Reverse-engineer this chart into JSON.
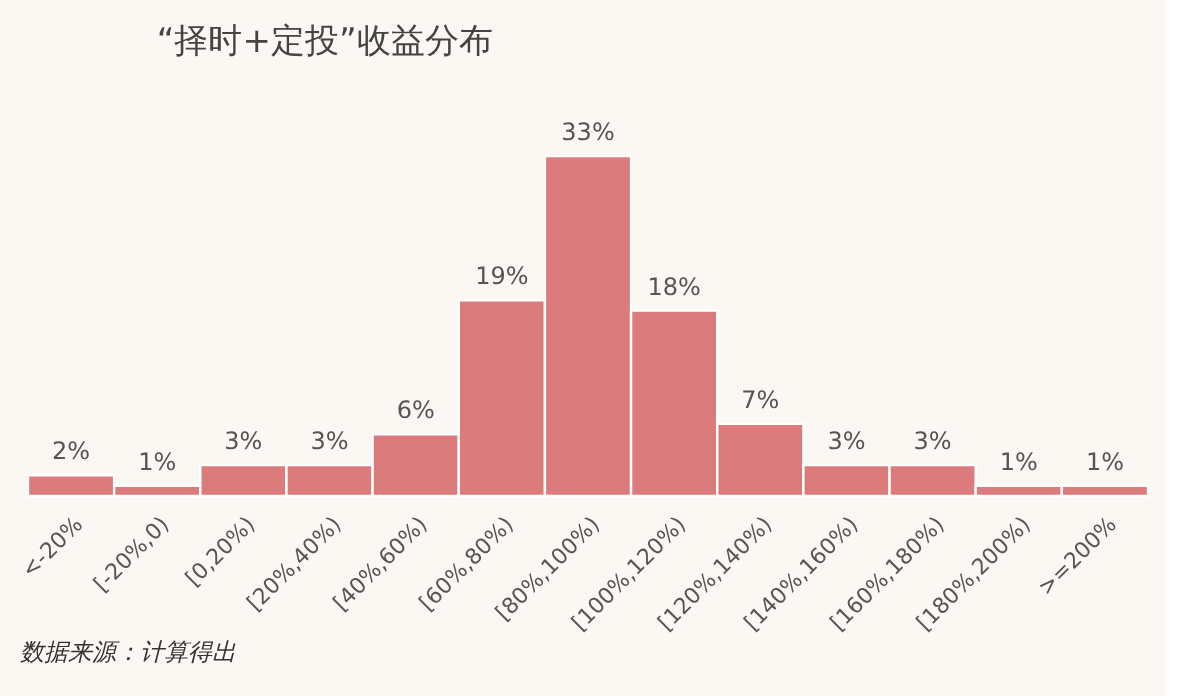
{
  "chart_data": {
    "type": "bar",
    "title": "“择时+定投”收益分布",
    "categories": [
      "<-20%",
      "[-20%,0)",
      "[0,20%)",
      "[20%,40%)",
      "[40%,60%)",
      "[60%,80%)",
      "[80%,100%)",
      "[100%,120%)",
      "[120%,140%)",
      "[140%,160%)",
      "[160%,180%)",
      "[180%,200%)",
      ">=200%"
    ],
    "values": [
      2,
      1,
      3,
      3,
      6,
      19,
      33,
      18,
      7,
      3,
      3,
      1,
      1
    ],
    "value_labels": [
      "2%",
      "1%",
      "3%",
      "3%",
      "6%",
      "19%",
      "33%",
      "18%",
      "7%",
      "3%",
      "3%",
      "1%",
      "1%"
    ],
    "color": "#dc7b7b",
    "tick_labels": "x",
    "grid": false,
    "annotations": [
      "数据来源：计算得出"
    ]
  }
}
